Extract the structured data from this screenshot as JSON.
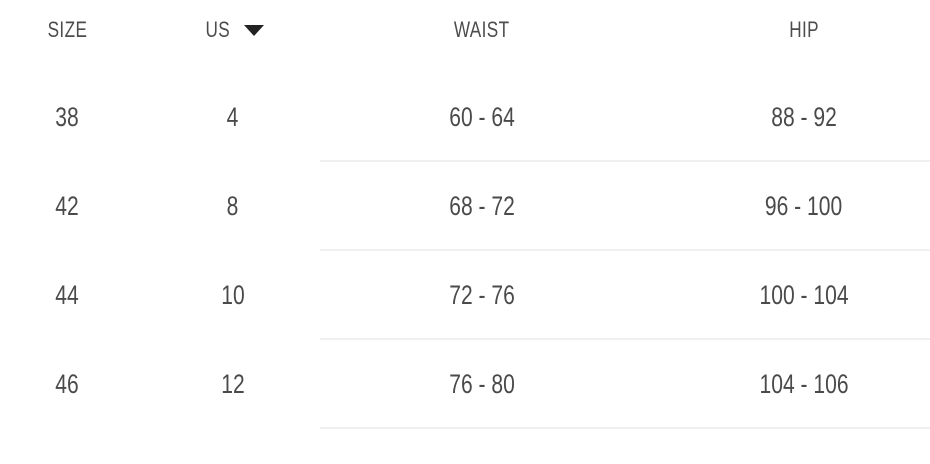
{
  "table": {
    "columns": [
      {
        "key": "size",
        "label": "SIZE"
      },
      {
        "key": "us",
        "label": "US",
        "has_dropdown": true,
        "dropdown_icon": "triangle-down-icon"
      },
      {
        "key": "waist",
        "label": "WAIST"
      },
      {
        "key": "hip",
        "label": "HIP"
      }
    ],
    "rows": [
      {
        "size": "38",
        "us": "4",
        "waist": "60 - 64",
        "hip": "88 - 92"
      },
      {
        "size": "42",
        "us": "8",
        "waist": "68 - 72",
        "hip": "96 - 100"
      },
      {
        "size": "44",
        "us": "10",
        "waist": "72 - 76",
        "hip": "100 - 104"
      },
      {
        "size": "46",
        "us": "12",
        "waist": "76 - 80",
        "hip": "104 - 106"
      }
    ]
  },
  "colors": {
    "background": "#ffffff",
    "text": "#4a4a4a",
    "header_text": "#4c4c4c",
    "dropdown_arrow": "#222222",
    "divider": "#f0f0f0"
  }
}
